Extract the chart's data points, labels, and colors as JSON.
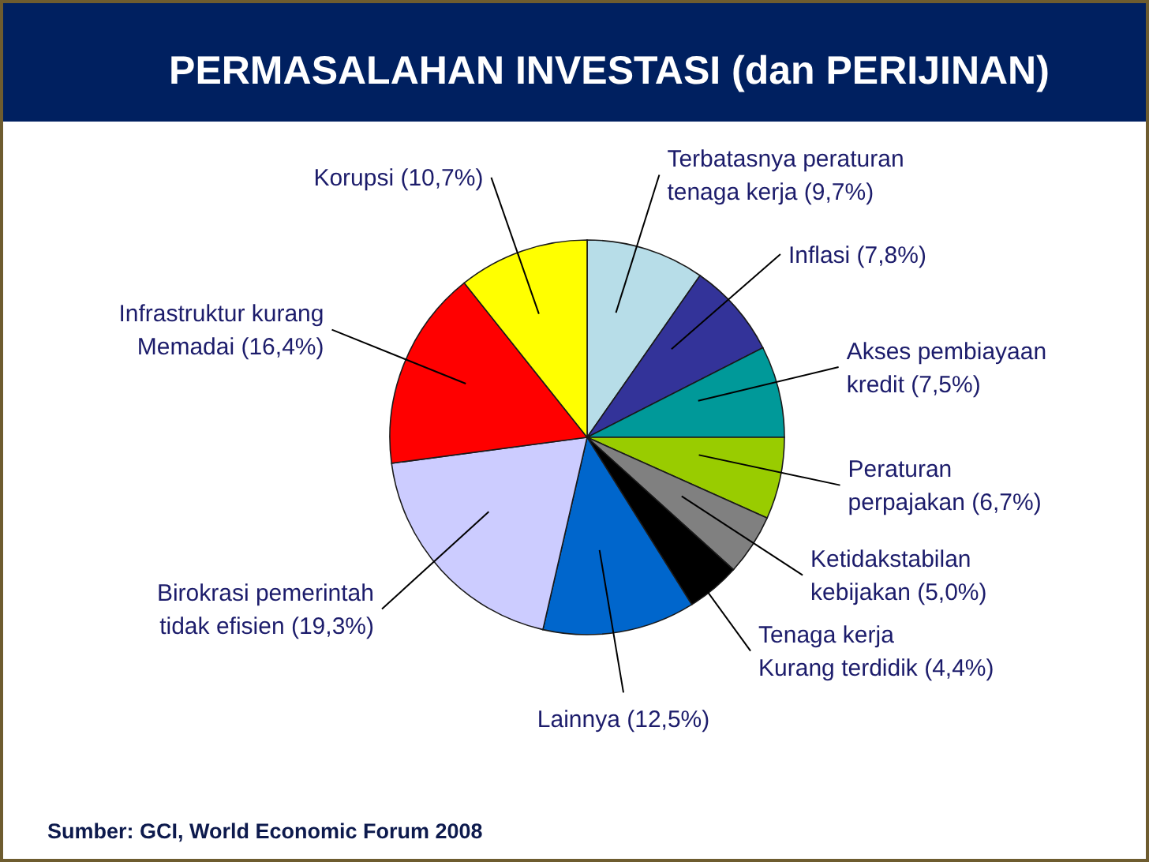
{
  "chart_data": {
    "type": "pie",
    "title": "PERMASALAHAN INVESTASI (dan PERIJINAN)",
    "categories": [
      "Terbatasnya peraturan\ntenaga kerja",
      "Inflasi",
      "Akses pembiayaan\nkredit",
      "Peraturan\nperpajakan",
      "Ketidakstabilan\nkebijakan",
      "Tenaga kerja\nKurang terdidik",
      "Lainnya",
      "Birokrasi pemerintah\ntidak efisien",
      "Infrastruktur kurang\nMemadai",
      "Korupsi"
    ],
    "values": [
      9.7,
      7.8,
      7.5,
      6.7,
      5.0,
      4.4,
      12.5,
      19.3,
      16.4,
      10.7
    ],
    "colors": [
      "#b7dde8",
      "#333399",
      "#009999",
      "#99cc00",
      "#808080",
      "#000000",
      "#0066cc",
      "#ccccff",
      "#ff0000",
      "#ffff00"
    ],
    "value_labels": [
      "(9,7%)",
      "(7,8%)",
      "(7,5%)",
      "(6,7%)",
      "(5,0%)",
      "(4,4%)",
      "(12,5%)",
      "(19,3%)",
      "(16,4%)",
      "(10,7%)"
    ],
    "annotations": [
      "Sumber: GCI, World Economic Forum 2008"
    ]
  }
}
